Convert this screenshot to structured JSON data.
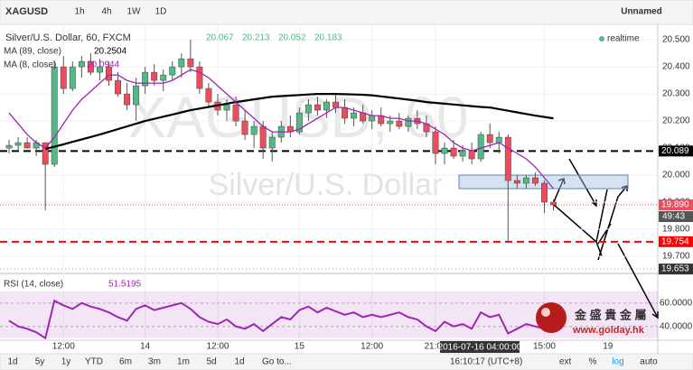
{
  "toolbar": {
    "symbol": "XAGUSD",
    "intervals": [
      "1h",
      "4h",
      "1W",
      "1D"
    ],
    "layout_name": "Unnamed"
  },
  "chart_data": [
    {
      "type": "candlestick",
      "title": "Silver/U.S. Dollar, 60, FXCM",
      "ohlc": [
        20.067,
        20.213,
        20.052,
        20.183
      ],
      "status": "realtime",
      "watermark": [
        "XAGUSD, 60",
        "Silver/U.S. Dollar"
      ],
      "categories": [
        null,
        null,
        null,
        null,
        null,
        null,
        "12:00",
        null,
        null,
        null,
        null,
        null,
        null,
        null,
        null,
        "14",
        null,
        null,
        null,
        null,
        null,
        null,
        null,
        "12:00",
        null,
        null,
        null,
        null,
        null,
        null,
        null,
        null,
        "15",
        null,
        null,
        null,
        null,
        null,
        null,
        null,
        "12:00",
        null,
        null,
        null,
        null,
        null,
        null,
        "21:00",
        null,
        null,
        null,
        null,
        null,
        null,
        null,
        null,
        null,
        null,
        null,
        "15:00",
        null
      ],
      "future_labels": [
        "19"
      ],
      "crosshair_label": "2016-07-16 04:00:00",
      "up_color": "#53b987",
      "down_color": "#eb4d5c",
      "values": [
        [
          20.1,
          20.13,
          20.08,
          20.11
        ],
        [
          20.11,
          20.14,
          20.09,
          20.12
        ],
        [
          20.12,
          20.14,
          20.1,
          20.1
        ],
        [
          20.1,
          20.13,
          20.07,
          20.12
        ],
        [
          20.12,
          20.12,
          19.87,
          20.04
        ],
        [
          20.04,
          20.42,
          20.03,
          20.4
        ],
        [
          20.4,
          20.44,
          20.3,
          20.32
        ],
        [
          20.32,
          20.42,
          20.31,
          20.4
        ],
        [
          20.4,
          20.44,
          20.36,
          20.42
        ],
        [
          20.42,
          20.45,
          20.37,
          20.38
        ],
        [
          20.38,
          20.43,
          20.35,
          20.4
        ],
        [
          20.4,
          20.42,
          20.33,
          20.35
        ],
        [
          20.35,
          20.38,
          20.29,
          20.3
        ],
        [
          20.3,
          20.34,
          20.24,
          20.26
        ],
        [
          20.26,
          20.36,
          20.2,
          20.33
        ],
        [
          20.33,
          20.4,
          20.3,
          20.38
        ],
        [
          20.38,
          20.41,
          20.33,
          20.35
        ],
        [
          20.35,
          20.39,
          20.31,
          20.37
        ],
        [
          20.37,
          20.42,
          20.35,
          20.4
        ],
        [
          20.4,
          20.45,
          20.36,
          20.43
        ],
        [
          20.43,
          20.5,
          20.38,
          20.4
        ],
        [
          20.4,
          20.42,
          20.3,
          20.32
        ],
        [
          20.32,
          20.34,
          20.25,
          20.27
        ],
        [
          20.27,
          20.3,
          20.22,
          20.24
        ],
        [
          20.24,
          20.28,
          20.2,
          20.26
        ],
        [
          20.26,
          20.29,
          20.18,
          20.2
        ],
        [
          20.2,
          20.24,
          20.13,
          20.15
        ],
        [
          20.15,
          20.2,
          20.1,
          20.18
        ],
        [
          20.18,
          20.2,
          20.06,
          20.1
        ],
        [
          20.1,
          20.16,
          20.05,
          20.14
        ],
        [
          20.14,
          20.2,
          20.12,
          20.18
        ],
        [
          20.18,
          20.22,
          20.14,
          20.16
        ],
        [
          20.16,
          20.25,
          20.15,
          20.23
        ],
        [
          20.23,
          20.28,
          20.2,
          20.26
        ],
        [
          20.26,
          20.29,
          20.22,
          20.24
        ],
        [
          20.24,
          20.28,
          20.21,
          20.27
        ],
        [
          20.27,
          20.3,
          20.23,
          20.25
        ],
        [
          20.25,
          20.28,
          20.19,
          20.21
        ],
        [
          20.21,
          20.25,
          20.18,
          20.23
        ],
        [
          20.23,
          20.26,
          20.19,
          20.2
        ],
        [
          20.2,
          20.24,
          20.17,
          20.22
        ],
        [
          20.22,
          20.25,
          20.18,
          20.19
        ],
        [
          20.19,
          20.22,
          20.16,
          20.2
        ],
        [
          20.2,
          20.23,
          20.17,
          20.18
        ],
        [
          20.18,
          20.22,
          20.16,
          20.21
        ],
        [
          20.21,
          20.24,
          20.17,
          20.19
        ],
        [
          20.19,
          20.22,
          20.14,
          20.16
        ],
        [
          20.16,
          20.18,
          20.04,
          20.08
        ],
        [
          20.08,
          20.12,
          20.04,
          20.1
        ],
        [
          20.1,
          20.13,
          20.06,
          20.07
        ],
        [
          20.07,
          20.11,
          20.05,
          20.09
        ],
        [
          20.09,
          20.12,
          20.04,
          20.06
        ],
        [
          20.06,
          20.16,
          20.05,
          20.15
        ],
        [
          20.15,
          20.19,
          20.1,
          20.12
        ],
        [
          20.12,
          20.16,
          20.08,
          20.14
        ],
        [
          20.14,
          20.15,
          19.75,
          19.98
        ],
        [
          19.98,
          20.0,
          19.95,
          19.97
        ],
        [
          19.97,
          20.0,
          19.95,
          19.99
        ],
        [
          19.99,
          20.01,
          19.96,
          19.97
        ],
        [
          19.97,
          19.98,
          19.86,
          19.9
        ],
        [
          19.9,
          19.91,
          19.87,
          19.89
        ]
      ],
      "lines": [
        {
          "name": "MA (89, close)",
          "value_label": 20.2504,
          "color": "#000000",
          "values": [
            null,
            null,
            null,
            null,
            20.097,
            20.105,
            20.114,
            20.123,
            20.132,
            20.141,
            20.15,
            20.16,
            20.17,
            20.18,
            20.19,
            20.2,
            20.208,
            20.216,
            20.224,
            20.232,
            20.24,
            20.246,
            20.252,
            20.258,
            20.264,
            20.27,
            20.275,
            20.28,
            20.285,
            20.29,
            20.292,
            20.294,
            20.296,
            20.298,
            20.3,
            20.3,
            20.3,
            20.299,
            20.298,
            20.297,
            20.295,
            20.291,
            20.287,
            20.283,
            20.279,
            20.275,
            20.27,
            20.267,
            20.264,
            20.261,
            20.258,
            20.255,
            20.252,
            20.25,
            20.244,
            20.238,
            20.232,
            20.226,
            20.22,
            20.215,
            20.21
          ]
        },
        {
          "name": "MA (8, close)",
          "value_label": 20.0944,
          "color": "#9c27b0",
          "values": [
            20.23,
            20.19,
            20.15,
            20.12,
            20.1,
            20.14,
            20.19,
            20.24,
            20.28,
            20.31,
            20.34,
            20.37,
            20.37,
            20.35,
            20.34,
            20.34,
            20.34,
            20.34,
            20.35,
            20.37,
            20.39,
            20.38,
            20.36,
            20.33,
            20.3,
            20.27,
            20.24,
            20.21,
            20.18,
            20.16,
            20.16,
            20.16,
            20.17,
            20.19,
            20.21,
            20.23,
            20.25,
            20.25,
            20.24,
            20.23,
            20.22,
            20.22,
            20.21,
            20.21,
            20.2,
            20.2,
            20.19,
            20.17,
            20.15,
            20.12,
            20.1,
            20.09,
            20.1,
            20.11,
            20.12,
            20.1,
            20.08,
            20.06,
            20.03,
            19.99,
            19.95
          ]
        }
      ],
      "hlines": [
        {
          "value": 20.089,
          "color": "#000000"
        },
        {
          "value": 19.754,
          "color": "#ff0000"
        }
      ],
      "price_line": {
        "value": 19.89,
        "label": "19.890"
      },
      "countdown": "49:43",
      "low_marker": 19.653,
      "zone": [
        19.95,
        20.0
      ],
      "ylim": [
        19.64,
        20.527
      ],
      "yticks": [
        {
          "value": 20.5,
          "label": "20.500"
        },
        {
          "value": 20.4,
          "label": "20.400"
        },
        {
          "value": 20.3,
          "label": "20.300"
        },
        {
          "value": 20.2,
          "label": "20.200"
        },
        {
          "value": 20.1,
          "label": "20.100"
        },
        {
          "value": 20.0,
          "label": "20.000"
        },
        {
          "value": 19.9,
          "label": "19.900"
        },
        {
          "value": 19.8,
          "label": "19.800"
        },
        {
          "value": 19.7,
          "label": "19.700"
        }
      ],
      "grid": true
    },
    {
      "type": "line",
      "title": "RSI (14, close)",
      "value_label": 51.5195,
      "color": "#9c27b0",
      "values": [
        45,
        40,
        38,
        35,
        30,
        62,
        58,
        55,
        60,
        57,
        55,
        52,
        48,
        45,
        55,
        58,
        54,
        56,
        58,
        60,
        55,
        48,
        44,
        42,
        46,
        40,
        38,
        42,
        36,
        42,
        48,
        46,
        54,
        57,
        52,
        56,
        53,
        50,
        52,
        48,
        50,
        48,
        50,
        52,
        48,
        46,
        40,
        36,
        44,
        40,
        42,
        38,
        52,
        48,
        50,
        34,
        38,
        42,
        40,
        38,
        36
      ],
      "band": [
        30,
        70
      ],
      "ylim": [
        29,
        83
      ],
      "yticks": [
        {
          "value": 40,
          "label": "40.0000"
        },
        {
          "value": 60,
          "label": "60.0000"
        }
      ]
    }
  ],
  "footer": {
    "ranges": [
      "1d",
      "5y",
      "1y",
      "YTD",
      "6m",
      "3m",
      "1m",
      "5d",
      "1d"
    ],
    "goto": "Go to...",
    "clock": "16:10:17 (UTC+8)",
    "options": [
      "%",
      "log",
      "auto"
    ],
    "ext": "ext"
  },
  "logo": {
    "name": "金 盛 貴 金 屬",
    "url": "www.golday.hk"
  }
}
